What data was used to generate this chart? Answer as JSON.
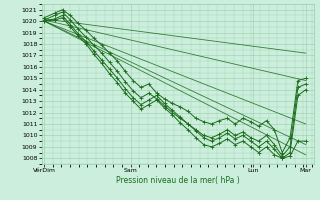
{
  "title": "Pression niveau de la mer( hPa )",
  "ylim": [
    1007.5,
    1021.5
  ],
  "yticks": [
    1008,
    1009,
    1010,
    1011,
    1012,
    1013,
    1014,
    1015,
    1016,
    1017,
    1018,
    1019,
    1020,
    1021
  ],
  "xtick_labels": [
    "VérDim",
    "Sam",
    "Lun",
    "Mar"
  ],
  "xtick_positions": [
    0,
    0.33,
    0.8,
    1.0
  ],
  "background_color": "#cceedd",
  "grid_color": "#99ccaa",
  "line_color": "#1a6b1a",
  "straight_lines": [
    {
      "x": [
        0.0,
        1.0
      ],
      "y": [
        1020.2,
        1017.2
      ]
    },
    {
      "x": [
        0.0,
        1.0
      ],
      "y": [
        1020.1,
        1014.8
      ]
    },
    {
      "x": [
        0.0,
        1.0
      ],
      "y": [
        1020.0,
        1011.0
      ]
    },
    {
      "x": [
        0.0,
        1.0
      ],
      "y": [
        1020.0,
        1009.2
      ]
    },
    {
      "x": [
        0.0,
        1.0
      ],
      "y": [
        1020.0,
        1008.3
      ]
    }
  ],
  "noisy_lines": [
    {
      "x": [
        0.0,
        0.04,
        0.07,
        0.1,
        0.13,
        0.16,
        0.19,
        0.22,
        0.25,
        0.28,
        0.31,
        0.34,
        0.37,
        0.4,
        0.43,
        0.46,
        0.49,
        0.52,
        0.55,
        0.58,
        0.61,
        0.64,
        0.67,
        0.7,
        0.73,
        0.76,
        0.79,
        0.82,
        0.85,
        0.88,
        0.91,
        0.94,
        0.97,
        1.0
      ],
      "y": [
        1020.3,
        1020.7,
        1021.0,
        1020.5,
        1019.8,
        1019.2,
        1018.5,
        1017.9,
        1017.2,
        1016.5,
        1015.6,
        1014.8,
        1014.2,
        1014.5,
        1013.7,
        1013.2,
        1012.8,
        1012.5,
        1012.1,
        1011.5,
        1011.2,
        1011.0,
        1011.3,
        1011.5,
        1011.0,
        1011.5,
        1011.2,
        1010.8,
        1011.3,
        1010.5,
        1008.5,
        1009.8,
        1014.8,
        1015.0
      ]
    },
    {
      "x": [
        0.0,
        0.04,
        0.07,
        0.1,
        0.13,
        0.16,
        0.19,
        0.22,
        0.25,
        0.28,
        0.31,
        0.34,
        0.37,
        0.4,
        0.43,
        0.46,
        0.49,
        0.52,
        0.55,
        0.58,
        0.61,
        0.64,
        0.67,
        0.7,
        0.73,
        0.76,
        0.79,
        0.82,
        0.85,
        0.88,
        0.91,
        0.94,
        0.97,
        1.0
      ],
      "y": [
        1020.1,
        1020.5,
        1020.8,
        1020.1,
        1019.3,
        1018.6,
        1017.9,
        1017.2,
        1016.4,
        1015.6,
        1014.7,
        1013.9,
        1013.3,
        1013.7,
        1013.2,
        1012.6,
        1012.0,
        1011.5,
        1011.0,
        1010.5,
        1010.0,
        1009.8,
        1010.1,
        1010.5,
        1010.0,
        1010.3,
        1009.8,
        1009.5,
        1010.0,
        1009.2,
        1008.2,
        1009.0,
        1014.2,
        1014.5
      ]
    },
    {
      "x": [
        0.0,
        0.04,
        0.07,
        0.1,
        0.13,
        0.16,
        0.19,
        0.22,
        0.25,
        0.28,
        0.31,
        0.34,
        0.37,
        0.4,
        0.43,
        0.46,
        0.49,
        0.52,
        0.55,
        0.58,
        0.61,
        0.64,
        0.67,
        0.7,
        0.73,
        0.76,
        0.79,
        0.82,
        0.85,
        0.88,
        0.91,
        0.94,
        0.97,
        1.0
      ],
      "y": [
        1020.0,
        1020.2,
        1020.5,
        1019.7,
        1018.9,
        1018.2,
        1017.4,
        1016.6,
        1015.8,
        1015.0,
        1014.1,
        1013.3,
        1012.7,
        1013.1,
        1013.5,
        1012.8,
        1012.2,
        1011.6,
        1011.0,
        1010.4,
        1009.8,
        1009.5,
        1009.8,
        1010.2,
        1009.7,
        1010.0,
        1009.5,
        1009.0,
        1009.5,
        1008.8,
        1008.0,
        1008.5,
        1013.5,
        1014.0
      ]
    },
    {
      "x": [
        0.0,
        0.04,
        0.07,
        0.1,
        0.13,
        0.16,
        0.19,
        0.22,
        0.25,
        0.28,
        0.31,
        0.34,
        0.37,
        0.4,
        0.43,
        0.46,
        0.49,
        0.52,
        0.55,
        0.58,
        0.61,
        0.64,
        0.67,
        0.7,
        0.73,
        0.76,
        0.79,
        0.82,
        0.85,
        0.88,
        0.91,
        0.94,
        0.97,
        1.0
      ],
      "y": [
        1020.0,
        1020.1,
        1020.3,
        1019.5,
        1018.7,
        1018.0,
        1017.1,
        1016.3,
        1015.4,
        1014.6,
        1013.7,
        1013.0,
        1012.3,
        1012.7,
        1013.1,
        1012.4,
        1011.8,
        1011.1,
        1010.5,
        1009.8,
        1009.2,
        1009.0,
        1009.3,
        1009.7,
        1009.2,
        1009.5,
        1009.0,
        1008.5,
        1009.0,
        1008.3,
        1008.0,
        1008.2,
        1009.5,
        1009.5
      ]
    }
  ]
}
